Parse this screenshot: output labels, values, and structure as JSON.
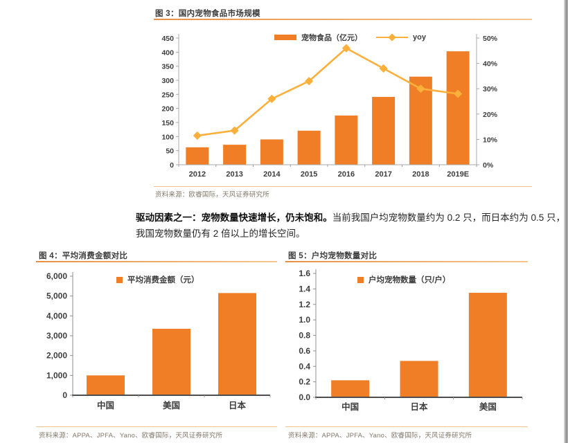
{
  "page": {
    "bar_color": "#F07E26",
    "line_color": "#FBB03B",
    "title_rule_color": "#E98F43",
    "source_rule_color": "#EFC28F",
    "axis_text_color": "#3d3d3d",
    "source_text_color": "#82786b"
  },
  "paragraph": {
    "bold": "驱动因素之一：宠物数量快速增长，仍未饱和。",
    "normal": "当前我国户均宠物数量约为 0.2 只，而日本约为 0.5 只，我国宠物数量仍有 2 倍以上的增长空间。"
  },
  "chart_data": [
    {
      "id": "chart3",
      "type": "bar+line",
      "title": "图 3：国内宠物食品市场规模",
      "categories": [
        "2012",
        "2013",
        "2014",
        "2015",
        "2016",
        "2017",
        "2018",
        "2019E"
      ],
      "series": [
        {
          "name": "宠物食品（亿元）",
          "type": "bar",
          "axis": "left",
          "values": [
            62,
            71,
            90,
            121,
            175,
            241,
            313,
            403
          ]
        },
        {
          "name": "yoy",
          "type": "line",
          "axis": "right",
          "values": [
            11.5,
            13.5,
            26,
            33,
            46,
            38,
            30,
            28
          ]
        }
      ],
      "left_axis": {
        "min": 0,
        "max": 450,
        "ticks": [
          "0",
          "50",
          "100",
          "150",
          "200",
          "250",
          "300",
          "350",
          "400",
          "450"
        ]
      },
      "right_axis": {
        "min": 0,
        "max": 50,
        "ticks": [
          "0%",
          "10%",
          "20%",
          "30%",
          "40%",
          "50%"
        ]
      },
      "legend_position": "top-center",
      "grid": false,
      "source": "资料来源：欧睿国际，天风证券研究所"
    },
    {
      "id": "chart4",
      "type": "bar",
      "title": "图 4：平均消费金额对比",
      "legend": "平均消费金额（元）",
      "categories": [
        "中国",
        "美国",
        "日本"
      ],
      "values": [
        1000,
        3350,
        5150
      ],
      "ylim": [
        0,
        6000
      ],
      "yticks": [
        "0",
        "1,000",
        "2,000",
        "3,000",
        "4,000",
        "5,000",
        "6,000"
      ],
      "grid": false,
      "source": "资料来源：APPA、JPFA、Yano、欧睿国际，天风证券研究所"
    },
    {
      "id": "chart5",
      "type": "bar",
      "title": "图 5：户均宠物数量对比",
      "legend": "户均宠物数量（只/户）",
      "categories": [
        "中国",
        "日本",
        "美国"
      ],
      "values": [
        0.22,
        0.47,
        1.35
      ],
      "ylim": [
        0,
        1.6
      ],
      "yticks": [
        "0.0",
        "0.2",
        "0.4",
        "0.6",
        "0.8",
        "1.0",
        "1.2",
        "1.4",
        "1.6"
      ],
      "grid": false,
      "source": "资料来源：APPA、JPFA、Yano、欧睿国际，天风证券研究所"
    }
  ]
}
